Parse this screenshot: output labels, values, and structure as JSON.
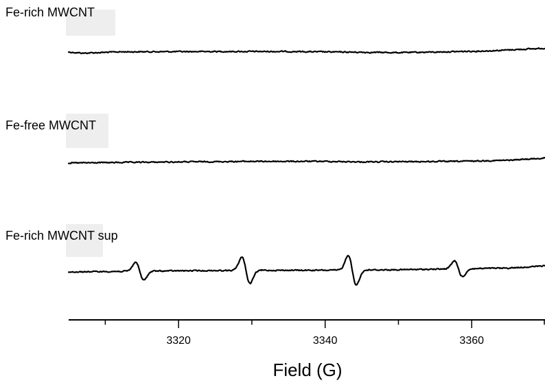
{
  "chart_data": {
    "type": "line",
    "xlabel": "Field (G)",
    "ylabel": "",
    "xlim": [
      3305,
      3370
    ],
    "x_major_ticks": [
      3320,
      3340,
      3360
    ],
    "x_minor_ticks": [
      3310,
      3330,
      3350,
      3370
    ],
    "grid": false,
    "series": [
      {
        "name": "Fe-rich MWCNT",
        "baseline": [
          [
            3305,
            0.0
          ],
          [
            3307,
            -0.1
          ],
          [
            3312,
            0.02
          ],
          [
            3325,
            0.05
          ],
          [
            3335,
            0.05
          ],
          [
            3345,
            -0.02
          ],
          [
            3350,
            -0.05
          ],
          [
            3355,
            0.0
          ],
          [
            3362,
            0.1
          ],
          [
            3370,
            0.35
          ]
        ],
        "peaks": []
      },
      {
        "name": "Fe-free MWCNT",
        "baseline": [
          [
            3305,
            0.0
          ],
          [
            3312,
            0.05
          ],
          [
            3320,
            0.1
          ],
          [
            3330,
            0.15
          ],
          [
            3340,
            0.15
          ],
          [
            3345,
            0.1
          ],
          [
            3350,
            0.12
          ],
          [
            3358,
            0.15
          ],
          [
            3365,
            0.25
          ],
          [
            3370,
            0.45
          ]
        ],
        "peaks": []
      },
      {
        "name": "Fe-rich MWCNT sup",
        "baseline": [
          [
            3305,
            0.0
          ],
          [
            3312,
            0.05
          ],
          [
            3320,
            0.1
          ],
          [
            3330,
            0.15
          ],
          [
            3340,
            0.15
          ],
          [
            3350,
            0.2
          ],
          [
            3360,
            0.3
          ],
          [
            3365,
            0.35
          ],
          [
            3370,
            0.55
          ]
        ],
        "peaks": [
          {
            "center": 3314.7,
            "amplitude": 0.85
          },
          {
            "center": 3329.2,
            "amplitude": 1.25
          },
          {
            "center": 3343.7,
            "amplitude": 1.4
          },
          {
            "center": 3358.2,
            "amplitude": 0.75
          }
        ]
      }
    ]
  }
}
